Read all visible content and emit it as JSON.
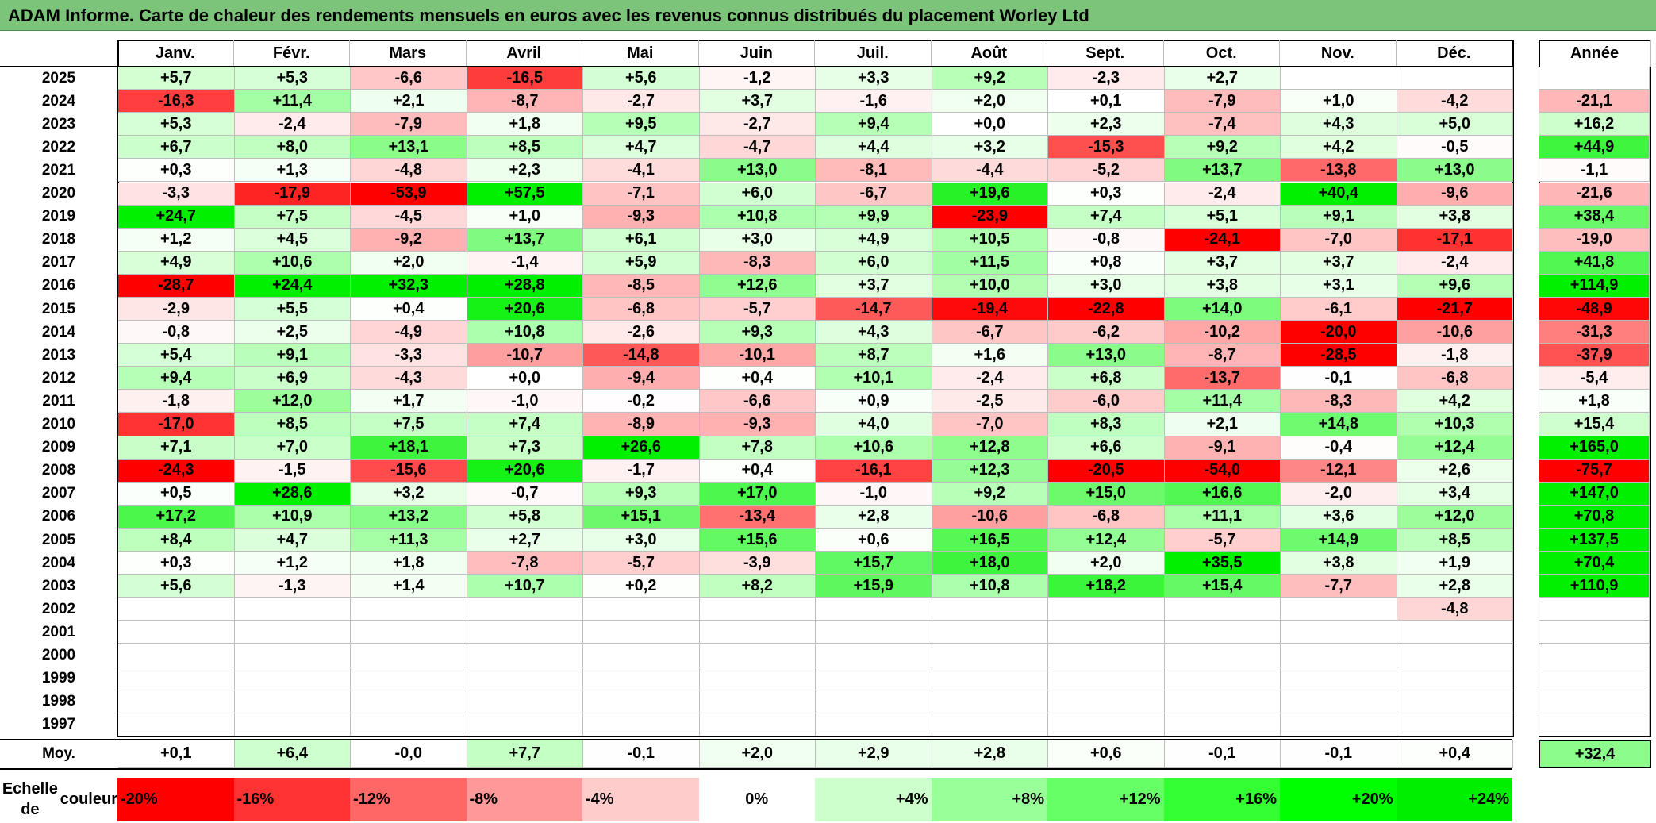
{
  "title": "ADAM Informe. Carte de chaleur des rendements mensuels en euros avec les revenus connus distribués du placement Worley Ltd",
  "chart_data": {
    "type": "heatmap",
    "title": "ADAM Informe. Carte de chaleur des rendements mensuels en euros avec les revenus connus distribués du placement Worley Ltd",
    "columns": [
      "Janv.",
      "Févr.",
      "Mars",
      "Avril",
      "Mai",
      "Juin",
      "Juil.",
      "Août",
      "Sept.",
      "Oct.",
      "Nov.",
      "Déc."
    ],
    "annual_header": "Année",
    "rows": [
      {
        "year": "2025",
        "values": [
          5.7,
          5.3,
          -6.6,
          -16.5,
          5.6,
          -1.2,
          3.3,
          9.2,
          -2.3,
          2.7,
          null,
          null
        ],
        "annual": null
      },
      {
        "year": "2024",
        "values": [
          -16.3,
          11.4,
          2.1,
          -8.7,
          -2.7,
          3.7,
          -1.6,
          2.0,
          0.1,
          -7.9,
          1.0,
          -4.2
        ],
        "annual": -21.1
      },
      {
        "year": "2023",
        "values": [
          5.3,
          -2.4,
          -7.9,
          1.8,
          9.5,
          -2.7,
          9.4,
          0.0,
          2.3,
          -7.4,
          4.3,
          5.0
        ],
        "annual": 16.2
      },
      {
        "year": "2022",
        "values": [
          6.7,
          8.0,
          13.1,
          8.5,
          4.7,
          -4.7,
          4.4,
          3.2,
          -15.3,
          9.2,
          4.2,
          -0.5
        ],
        "annual": 44.9
      },
      {
        "year": "2021",
        "values": [
          0.3,
          1.3,
          -4.8,
          2.3,
          -4.1,
          13.0,
          -8.1,
          -4.4,
          -5.2,
          13.7,
          -13.8,
          13.0
        ],
        "annual": -1.1
      },
      {
        "year": "2020",
        "values": [
          -3.3,
          -17.9,
          -53.9,
          57.5,
          -7.1,
          6.0,
          -6.7,
          19.6,
          0.3,
          -2.4,
          40.4,
          -9.6
        ],
        "annual": -21.6
      },
      {
        "year": "2019",
        "values": [
          24.7,
          7.5,
          -4.5,
          1.0,
          -9.3,
          10.8,
          9.9,
          -23.9,
          7.4,
          5.1,
          9.1,
          3.8
        ],
        "annual": 38.4
      },
      {
        "year": "2018",
        "values": [
          1.2,
          4.5,
          -9.2,
          13.7,
          6.1,
          3.0,
          4.9,
          10.5,
          -0.8,
          -24.1,
          -7.0,
          -17.1
        ],
        "annual": -19.0
      },
      {
        "year": "2017",
        "values": [
          4.9,
          10.6,
          2.0,
          -1.4,
          5.9,
          -8.3,
          6.0,
          11.5,
          0.8,
          3.7,
          3.7,
          -2.4
        ],
        "annual": 41.8
      },
      {
        "year": "2016",
        "values": [
          -28.7,
          24.4,
          32.3,
          28.8,
          -8.5,
          12.6,
          3.7,
          10.0,
          3.0,
          3.8,
          3.1,
          9.6
        ],
        "annual": 114.9
      },
      {
        "year": "2015",
        "values": [
          -2.9,
          5.5,
          0.4,
          20.6,
          -6.8,
          -5.7,
          -14.7,
          -19.4,
          -22.8,
          14.0,
          -6.1,
          -21.7
        ],
        "annual": -48.9
      },
      {
        "year": "2014",
        "values": [
          -0.8,
          2.5,
          -4.9,
          10.8,
          -2.6,
          9.3,
          4.3,
          -6.7,
          -6.2,
          -10.2,
          -20.0,
          -10.6
        ],
        "annual": -31.3
      },
      {
        "year": "2013",
        "values": [
          5.4,
          9.1,
          -3.3,
          -10.7,
          -14.8,
          -10.1,
          8.7,
          1.6,
          13.0,
          -8.7,
          -28.5,
          -1.8
        ],
        "annual": -37.9
      },
      {
        "year": "2012",
        "values": [
          9.4,
          6.9,
          -4.3,
          0.0,
          -9.4,
          0.4,
          10.1,
          -2.4,
          6.8,
          -13.7,
          -0.1,
          -6.8
        ],
        "annual": -5.4
      },
      {
        "year": "2011",
        "values": [
          -1.8,
          12.0,
          1.7,
          -1.0,
          -0.2,
          -6.6,
          0.9,
          -2.5,
          -6.0,
          11.4,
          -8.3,
          4.2
        ],
        "annual": 1.8
      },
      {
        "year": "2010",
        "values": [
          -17.0,
          8.5,
          7.5,
          7.4,
          -8.9,
          -9.3,
          4.0,
          -7.0,
          8.3,
          2.1,
          14.8,
          10.3
        ],
        "annual": 15.4
      },
      {
        "year": "2009",
        "values": [
          7.1,
          7.0,
          18.1,
          7.3,
          26.6,
          7.8,
          10.6,
          12.8,
          6.6,
          -9.1,
          -0.4,
          12.4
        ],
        "annual": 165.0
      },
      {
        "year": "2008",
        "values": [
          -24.3,
          -1.5,
          -15.6,
          20.6,
          -1.7,
          0.4,
          -16.1,
          12.3,
          -20.5,
          -54.0,
          -12.1,
          2.6
        ],
        "annual": -75.7
      },
      {
        "year": "2007",
        "values": [
          0.5,
          28.6,
          3.2,
          -0.7,
          9.3,
          17.0,
          -1.0,
          9.2,
          15.0,
          16.6,
          -2.0,
          3.4
        ],
        "annual": 147.0
      },
      {
        "year": "2006",
        "values": [
          17.2,
          10.9,
          13.2,
          5.8,
          15.1,
          -13.4,
          2.8,
          -10.6,
          -6.8,
          11.1,
          3.6,
          12.0
        ],
        "annual": 70.8
      },
      {
        "year": "2005",
        "values": [
          8.4,
          4.7,
          11.3,
          2.7,
          3.0,
          15.6,
          0.6,
          16.5,
          12.4,
          -5.7,
          14.9,
          8.5
        ],
        "annual": 137.5
      },
      {
        "year": "2004",
        "values": [
          0.3,
          1.2,
          1.8,
          -7.8,
          -5.7,
          -3.9,
          15.7,
          18.0,
          2.0,
          35.5,
          3.8,
          1.9
        ],
        "annual": 70.4
      },
      {
        "year": "2003",
        "values": [
          5.6,
          -1.3,
          1.4,
          10.7,
          0.2,
          8.2,
          15.9,
          10.8,
          18.2,
          15.4,
          -7.7,
          2.8
        ],
        "annual": 110.9
      },
      {
        "year": "2002",
        "values": [
          null,
          null,
          null,
          null,
          null,
          null,
          null,
          null,
          null,
          null,
          null,
          -4.8
        ],
        "annual": null
      },
      {
        "year": "2001",
        "values": [
          null,
          null,
          null,
          null,
          null,
          null,
          null,
          null,
          null,
          null,
          null,
          null
        ],
        "annual": null
      },
      {
        "year": "2000",
        "values": [
          null,
          null,
          null,
          null,
          null,
          null,
          null,
          null,
          null,
          null,
          null,
          null
        ],
        "annual": null
      },
      {
        "year": "1999",
        "values": [
          null,
          null,
          null,
          null,
          null,
          null,
          null,
          null,
          null,
          null,
          null,
          null
        ],
        "annual": null
      },
      {
        "year": "1998",
        "values": [
          null,
          null,
          null,
          null,
          null,
          null,
          null,
          null,
          null,
          null,
          null,
          null
        ],
        "annual": null
      },
      {
        "year": "1997",
        "values": [
          null,
          null,
          null,
          null,
          null,
          null,
          null,
          null,
          null,
          null,
          null,
          null
        ],
        "annual": null
      }
    ],
    "average": {
      "label": "Moy.",
      "values": [
        0.1,
        6.4,
        -0.0,
        7.7,
        -0.1,
        2.0,
        2.9,
        2.8,
        0.6,
        -0.1,
        -0.1,
        0.4
      ],
      "annual": 32.4
    },
    "color_scale": {
      "label_line1": "Echelle de",
      "label_line2": "couleur",
      "steps": [
        {
          "label": "-20%",
          "color": "#ff0000"
        },
        {
          "label": "-16%",
          "color": "#ff3333"
        },
        {
          "label": "-12%",
          "color": "#ff6666"
        },
        {
          "label": "-8%",
          "color": "#ff9999"
        },
        {
          "label": "-4%",
          "color": "#ffcccc"
        },
        {
          "label": "0%",
          "color": "#ffffff"
        },
        {
          "label": "+4%",
          "color": "#ccffcc"
        },
        {
          "label": "+8%",
          "color": "#99ff99"
        },
        {
          "label": "+12%",
          "color": "#66ff66"
        },
        {
          "label": "+16%",
          "color": "#33ff33"
        },
        {
          "label": "+20%",
          "color": "#00ff00"
        },
        {
          "label": "+24%",
          "color": "#00ee00"
        }
      ]
    }
  }
}
